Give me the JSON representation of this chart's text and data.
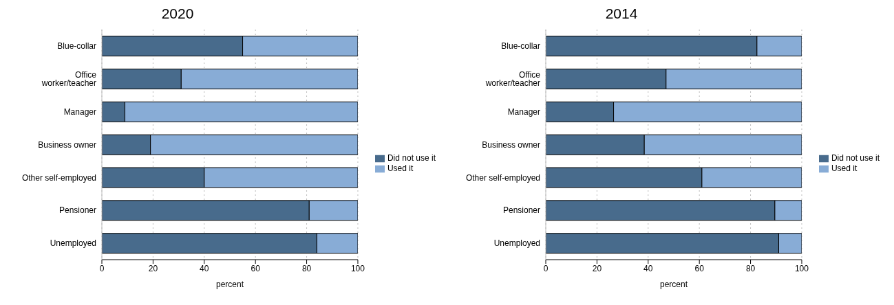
{
  "chart_data": [
    {
      "type": "bar",
      "orientation": "horizontal",
      "stacked": true,
      "title": "2020",
      "xlabel": "percent",
      "categories": [
        "Blue-collar",
        "Office worker/teacher",
        "Manager",
        "Business owner",
        "Other self-employed",
        "Pensioner",
        "Unemployed"
      ],
      "series": [
        {
          "name": "Did not use it",
          "color": "#486b8c",
          "values": [
            55,
            31,
            9,
            19,
            40,
            81,
            84
          ]
        },
        {
          "name": "Used it",
          "color": "#88acd6",
          "values": [
            45,
            69,
            91,
            81,
            60,
            19,
            16
          ]
        }
      ],
      "xlim": [
        0,
        100
      ],
      "xticks": [
        0,
        20,
        40,
        60,
        80,
        100
      ],
      "grid": "x",
      "legend": "right"
    },
    {
      "type": "bar",
      "orientation": "horizontal",
      "stacked": true,
      "title": "2014",
      "xlabel": "percent",
      "categories": [
        "Blue-collar",
        "Office worker/teacher",
        "Manager",
        "Business owner",
        "Other self-employed",
        "Pensioner",
        "Unemployed"
      ],
      "series": [
        {
          "name": "Did not use it",
          "color": "#486b8c",
          "values": [
            82.5,
            47,
            26.5,
            38.5,
            61,
            89.5,
            91
          ]
        },
        {
          "name": "Used it",
          "color": "#88acd6",
          "values": [
            17.5,
            53,
            73.5,
            61.5,
            39,
            10.5,
            9
          ]
        }
      ],
      "xlim": [
        0,
        100
      ],
      "xticks": [
        0,
        20,
        40,
        60,
        80,
        100
      ],
      "grid": "x",
      "legend": "right"
    }
  ]
}
